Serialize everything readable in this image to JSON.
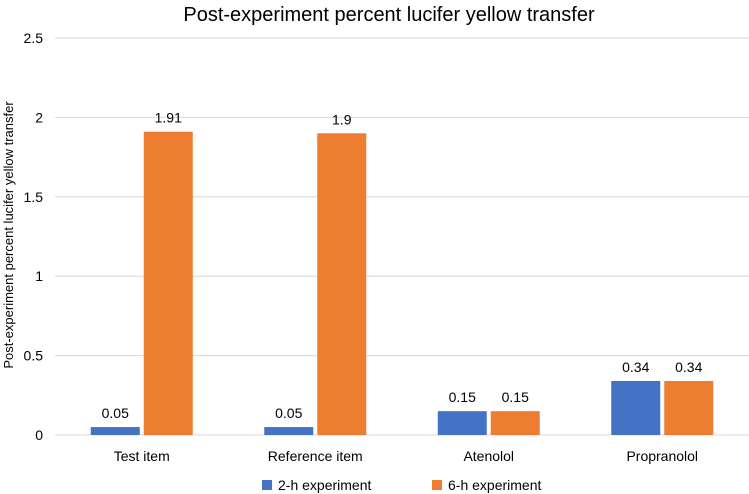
{
  "chart_data": {
    "type": "bar",
    "title": "Post-experiment percent lucifer yellow transfer",
    "xlabel": "",
    "ylabel": "Post-experiment percent lucifer yellow transfer",
    "categories": [
      "Test item",
      "Reference item",
      "Atenolol",
      "Propranolol"
    ],
    "series": [
      {
        "name": "2-h experiment",
        "color": "#4472c4",
        "values": [
          0.05,
          0.05,
          0.15,
          0.34
        ]
      },
      {
        "name": "6-h experiment",
        "color": "#ed7d31",
        "values": [
          1.91,
          1.9,
          0.15,
          0.34
        ]
      }
    ],
    "ylim": [
      0,
      2.5
    ],
    "yticks": [
      "0",
      "0.5",
      "1",
      "1.5",
      "2",
      "2.5"
    ],
    "grid": true,
    "legend": "bottom"
  }
}
